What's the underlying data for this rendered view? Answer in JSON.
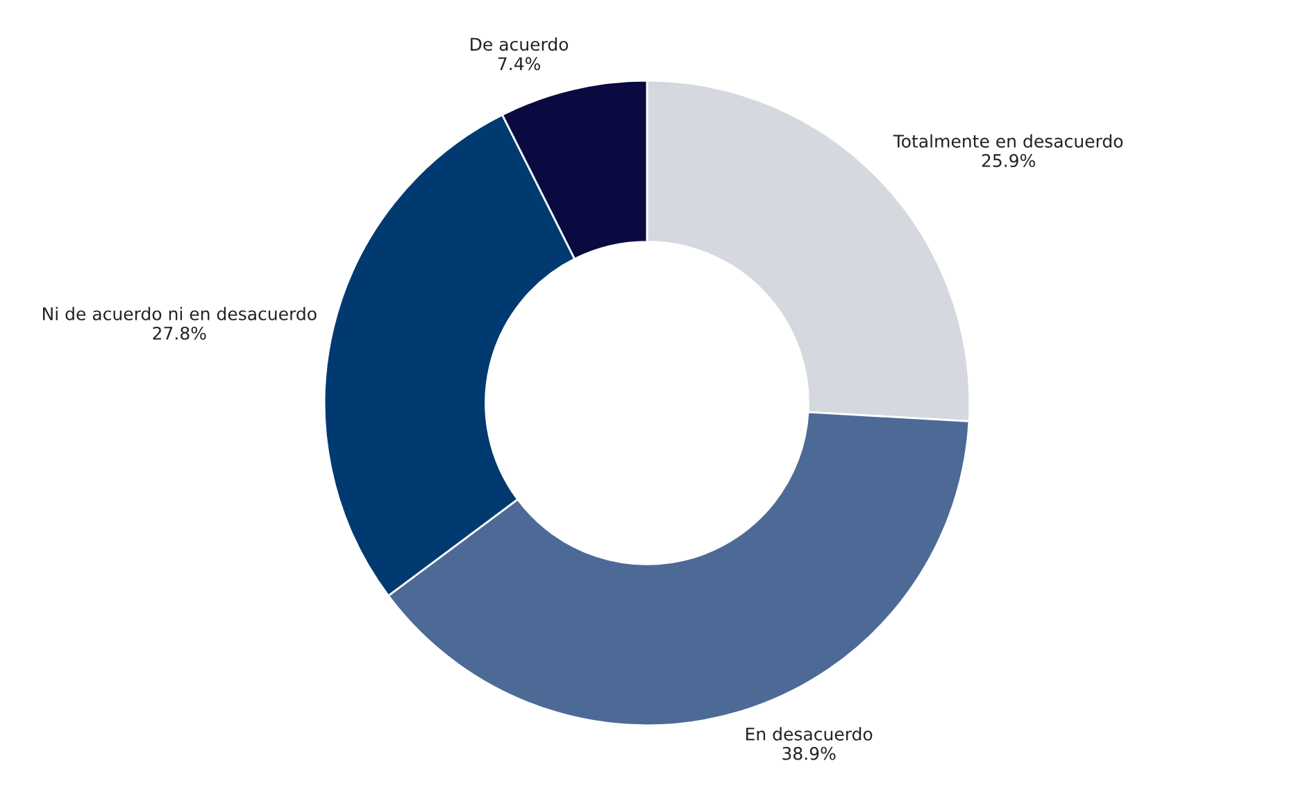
{
  "chart_data": {
    "type": "donut",
    "categories": [
      "Totalmente en desacuerdo",
      "En desacuerdo",
      "Ni de acuerdo ni en desacuerdo",
      "De acuerdo"
    ],
    "values": [
      25.9,
      38.9,
      27.8,
      7.4
    ],
    "value_labels": [
      "25.9%",
      "38.9%",
      "27.8%",
      "7.4%"
    ],
    "colors": [
      "#d5d8df",
      "#4d6a96",
      "#003a70",
      "#0a0a40"
    ],
    "legend": false
  }
}
